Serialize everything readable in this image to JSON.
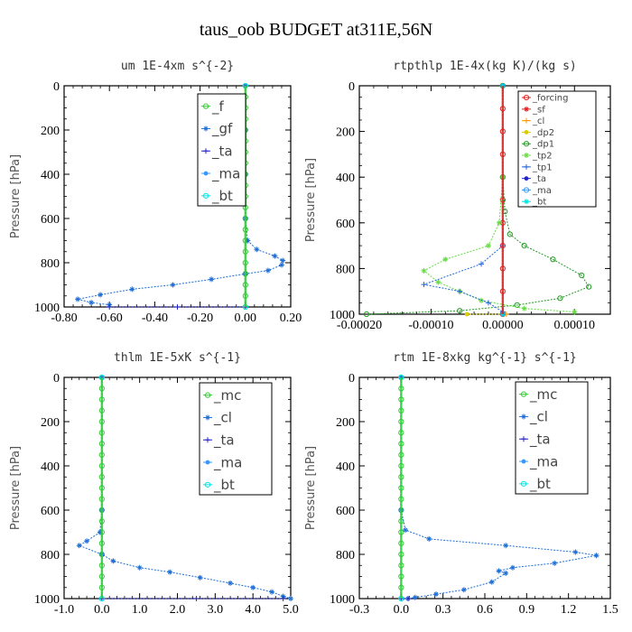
{
  "figure_title": "taus_oob  BUDGET at311E,56N",
  "chart_data": [
    {
      "type": "line",
      "title": "um  1E-4xm s^{-2}",
      "ylabel": "Pressure [hPa]",
      "xlim": [
        -0.8,
        0.2
      ],
      "ylim": [
        1000,
        0
      ],
      "xticks": [
        -0.8,
        -0.6,
        -0.4,
        -0.2,
        0.0,
        0.2
      ],
      "xtick_labels": [
        "-0.80",
        "-0.60",
        "-0.40",
        "-0.20",
        "0.00",
        "0.20"
      ],
      "yticks": [
        0,
        200,
        400,
        600,
        800,
        1000
      ],
      "legend_position": "top-right",
      "legend_font": 15,
      "series": [
        {
          "name": "_f",
          "color": "#33cc33",
          "points": [
            [
              0,
              0
            ],
            [
              0,
              50
            ],
            [
              0,
              100
            ],
            [
              0,
              150
            ],
            [
              0,
              200
            ],
            [
              0,
              250
            ],
            [
              0,
              300
            ],
            [
              0,
              350
            ],
            [
              0,
              400
            ],
            [
              0,
              450
            ],
            [
              0,
              500
            ],
            [
              0,
              550
            ],
            [
              0,
              600
            ],
            [
              0,
              650
            ],
            [
              0,
              700
            ],
            [
              0,
              750
            ],
            [
              0,
              800
            ],
            [
              0,
              850
            ],
            [
              0,
              900
            ],
            [
              0,
              950
            ],
            [
              0,
              1000
            ]
          ]
        },
        {
          "name": "_gf",
          "color": "#1f6fd6",
          "points": [
            [
              0,
              0
            ],
            [
              0,
              200
            ],
            [
              0,
              400
            ],
            [
              0,
              600
            ],
            [
              0.01,
              700
            ],
            [
              0.05,
              740
            ],
            [
              0.13,
              770
            ],
            [
              0.165,
              790
            ],
            [
              0.16,
              810
            ],
            [
              0.1,
              835
            ],
            [
              0,
              850
            ],
            [
              -0.15,
              875
            ],
            [
              -0.32,
              900
            ],
            [
              -0.5,
              920
            ],
            [
              -0.64,
              945
            ],
            [
              -0.74,
              965
            ],
            [
              -0.68,
              980
            ],
            [
              -0.6,
              990
            ]
          ]
        },
        {
          "name": "_ta",
          "color": "#2222cc",
          "points": [
            [
              -0.6,
              1000
            ],
            [
              -0.3,
              1000
            ],
            [
              0,
              1000
            ]
          ]
        },
        {
          "name": "_ma",
          "color": "#3399ff",
          "points": []
        },
        {
          "name": "_bt",
          "color": "#00e5e5",
          "points": [
            [
              0,
              0
            ],
            [
              0,
              1000
            ]
          ]
        }
      ]
    },
    {
      "type": "line",
      "title": "rtpthlp  1E-4x(kg K)/(kg s)",
      "ylabel": "Pressure [hPa]",
      "xlim": [
        -0.0002,
        0.00015
      ],
      "ylim": [
        1000,
        0
      ],
      "xticks": [
        -0.0002,
        -0.0001,
        0.0,
        0.0001
      ],
      "xtick_labels": [
        "-0.00020",
        "-0.00010",
        "0.00000",
        "0.00010"
      ],
      "yticks": [
        0,
        200,
        400,
        600,
        800,
        1000
      ],
      "legend_position": "top-right",
      "legend_font": 10,
      "series": [
        {
          "name": "_forcing",
          "color": "#e02020",
          "points": [
            [
              0,
              0
            ],
            [
              0,
              100
            ],
            [
              0,
              200
            ],
            [
              0,
              300
            ],
            [
              0,
              400
            ],
            [
              0,
              500
            ],
            [
              0,
              600
            ],
            [
              0,
              700
            ],
            [
              0,
              800
            ],
            [
              0,
              900
            ],
            [
              0,
              1000
            ]
          ]
        },
        {
          "name": "_sf",
          "color": "#e02020",
          "points": [
            [
              0,
              0
            ],
            [
              0,
              1000
            ]
          ]
        },
        {
          "name": "_cl",
          "color": "#ff9900",
          "points": [
            [
              0,
              1000
            ],
            [
              5e-06,
              1000
            ]
          ]
        },
        {
          "name": "_dp2",
          "color": "#ddcc00",
          "points": [
            [
              0,
              1000
            ],
            [
              -5e-05,
              1000
            ]
          ]
        },
        {
          "name": "_dp1",
          "color": "#229922",
          "points": [
            [
              0,
              0
            ],
            [
              0,
              400
            ],
            [
              3e-06,
              550
            ],
            [
              1e-05,
              650
            ],
            [
              3e-05,
              700
            ],
            [
              7e-05,
              760
            ],
            [
              0.00011,
              830
            ],
            [
              0.00012,
              880
            ],
            [
              8e-05,
              930
            ],
            [
              2e-05,
              960
            ],
            [
              -6e-05,
              985
            ],
            [
              -0.00019,
              1000
            ]
          ]
        },
        {
          "name": "_tp2",
          "color": "#66dd44",
          "points": [
            [
              0,
              0
            ],
            [
              0,
              400
            ],
            [
              -5e-06,
              600
            ],
            [
              -2e-05,
              700
            ],
            [
              -8e-05,
              760
            ],
            [
              -0.00011,
              810
            ],
            [
              -9e-05,
              860
            ],
            [
              -6e-05,
              900
            ],
            [
              -3e-05,
              940
            ],
            [
              3e-05,
              975
            ],
            [
              0.0001,
              990
            ]
          ]
        },
        {
          "name": "_tp1",
          "color": "#2266dd",
          "points": [
            [
              0,
              700
            ],
            [
              -3e-05,
              780
            ],
            [
              -0.00011,
              870
            ],
            [
              -6e-05,
              900
            ],
            [
              -2e-05,
              950
            ],
            [
              0,
              990
            ]
          ]
        },
        {
          "name": "_ta",
          "color": "#2222cc",
          "points": [
            [
              0,
              0
            ],
            [
              0,
              1000
            ]
          ]
        },
        {
          "name": "_ma",
          "color": "#3399ff",
          "points": []
        },
        {
          "name": "_bt",
          "color": "#00e5e5",
          "points": [
            [
              0,
              0
            ],
            [
              0,
              1000
            ]
          ]
        }
      ]
    },
    {
      "type": "line",
      "title": "thlm  1E-5xK s^{-1}",
      "ylabel": "Pressure [hPa]",
      "xlim": [
        -1.0,
        5.0
      ],
      "ylim": [
        1000,
        0
      ],
      "xticks": [
        -1,
        0,
        1,
        2,
        3,
        4,
        5
      ],
      "xtick_labels": [
        "-1.0",
        "0.0",
        "1.0",
        "2.0",
        "3.0",
        "4.0",
        "5.0"
      ],
      "yticks": [
        0,
        200,
        400,
        600,
        800,
        1000
      ],
      "legend_position": "top-right",
      "legend_font": 15,
      "series": [
        {
          "name": "_mc",
          "color": "#33cc33",
          "points": [
            [
              0,
              0
            ],
            [
              0,
              50
            ],
            [
              0,
              100
            ],
            [
              0,
              150
            ],
            [
              0,
              200
            ],
            [
              0,
              250
            ],
            [
              0,
              300
            ],
            [
              0,
              350
            ],
            [
              0,
              400
            ],
            [
              0,
              450
            ],
            [
              0,
              500
            ],
            [
              0,
              550
            ],
            [
              0,
              600
            ],
            [
              0,
              650
            ],
            [
              0,
              700
            ],
            [
              0,
              750
            ],
            [
              0,
              800
            ],
            [
              0,
              850
            ],
            [
              0,
              900
            ],
            [
              0,
              950
            ],
            [
              0,
              1000
            ]
          ]
        },
        {
          "name": "_cl",
          "color": "#1f6fd6",
          "points": [
            [
              0,
              0
            ],
            [
              0,
              600
            ],
            [
              -0.05,
              700
            ],
            [
              -0.4,
              740
            ],
            [
              -0.6,
              760
            ],
            [
              0,
              800
            ],
            [
              0.3,
              830
            ],
            [
              1,
              860
            ],
            [
              1.8,
              880
            ],
            [
              2.6,
              905
            ],
            [
              3.4,
              930
            ],
            [
              4,
              950
            ],
            [
              4.5,
              970
            ],
            [
              4.8,
              990
            ],
            [
              5,
              1000
            ]
          ]
        },
        {
          "name": "_ta",
          "color": "#2222cc",
          "points": [
            [
              0,
              1000
            ],
            [
              2.5,
              1000
            ],
            [
              4.8,
              1000
            ]
          ]
        },
        {
          "name": "_ma",
          "color": "#3399ff",
          "points": []
        },
        {
          "name": "_bt",
          "color": "#00e5e5",
          "points": [
            [
              0,
              0
            ],
            [
              0,
              1000
            ]
          ]
        }
      ]
    },
    {
      "type": "line",
      "title": "rtm  1E-8xkg kg^{-1} s^{-1}",
      "ylabel": "Pressure [hPa]",
      "xlim": [
        -0.3,
        1.5
      ],
      "ylim": [
        1000,
        0
      ],
      "xticks": [
        -0.3,
        0,
        0.3,
        0.6,
        0.9,
        1.2,
        1.5
      ],
      "xtick_labels": [
        "-0.3",
        "0.0",
        "0.3",
        "0.6",
        "0.9",
        "1.2",
        "1.5"
      ],
      "yticks": [
        0,
        200,
        400,
        600,
        800,
        1000
      ],
      "legend_position": "top-right",
      "legend_font": 15,
      "series": [
        {
          "name": "_mc",
          "color": "#33cc33",
          "points": [
            [
              0,
              0
            ],
            [
              0,
              50
            ],
            [
              0,
              100
            ],
            [
              0,
              150
            ],
            [
              0,
              200
            ],
            [
              0,
              250
            ],
            [
              0,
              300
            ],
            [
              0,
              350
            ],
            [
              0,
              400
            ],
            [
              0,
              450
            ],
            [
              0,
              500
            ],
            [
              0,
              550
            ],
            [
              0,
              600
            ],
            [
              0,
              650
            ],
            [
              0,
              700
            ],
            [
              0,
              750
            ],
            [
              0,
              800
            ],
            [
              0,
              850
            ],
            [
              0,
              900
            ],
            [
              0,
              950
            ],
            [
              0,
              1000
            ]
          ]
        },
        {
          "name": "_cl",
          "color": "#1f6fd6",
          "points": [
            [
              0,
              0
            ],
            [
              0,
              600
            ],
            [
              0.03,
              690
            ],
            [
              0.2,
              730
            ],
            [
              0.75,
              760
            ],
            [
              1.25,
              790
            ],
            [
              1.4,
              805
            ],
            [
              1.1,
              840
            ],
            [
              0.8,
              860
            ],
            [
              0.7,
              875
            ],
            [
              0.75,
              885
            ],
            [
              0.65,
              925
            ],
            [
              0.45,
              960
            ],
            [
              0.25,
              980
            ],
            [
              0.1,
              995
            ],
            [
              0.05,
              1000
            ]
          ]
        },
        {
          "name": "_ta",
          "color": "#2222cc",
          "points": [
            [
              0,
              1000
            ],
            [
              0.05,
              1000
            ]
          ]
        },
        {
          "name": "_ma",
          "color": "#3399ff",
          "points": []
        },
        {
          "name": "_bt",
          "color": "#00e5e5",
          "points": [
            [
              0,
              0
            ],
            [
              0,
              1000
            ]
          ]
        }
      ]
    }
  ]
}
